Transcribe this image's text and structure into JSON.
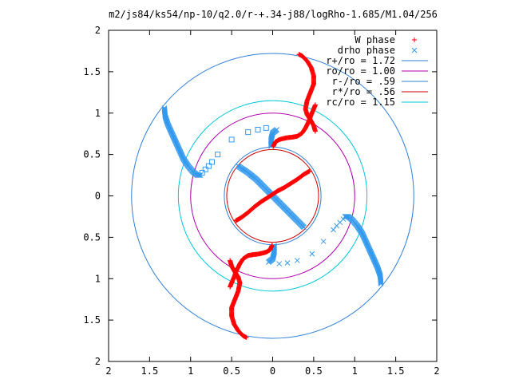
{
  "chart_data": {
    "type": "scatter",
    "title": "m2/js84/ks54/np-10/q2.0/r-+.34-j88/logRho-1.685/M1.04/256",
    "xlabel": "",
    "ylabel": "",
    "xlim": [
      -2,
      2
    ],
    "ylim": [
      -2,
      2
    ],
    "x_tick_labels": [
      "2",
      "1.5",
      "1",
      "0.5",
      "0",
      "0.5",
      "1",
      "1.5",
      "2"
    ],
    "y_tick_labels": [
      "2",
      "1.5",
      "1",
      "0.5",
      "0",
      "0.5",
      "1",
      "1.5",
      "2"
    ],
    "grid": false,
    "legend_position": "top-right",
    "colors": {
      "w_phase": "#ff0000",
      "drho_phase": "#3399ee",
      "r_plus": "#2f7fd8",
      "ro": "#b000b0",
      "r_minus": "#2f7fd8",
      "r_star": "#cc0000",
      "rc": "#00c8d8"
    },
    "series": [
      {
        "name": "W phase",
        "kind": "points",
        "marker": "plus",
        "arms": [
          {
            "x": [
              -0.52,
              -0.5,
              -0.46,
              -0.42,
              -0.4,
              -0.42,
              -0.46,
              -0.5,
              -0.5,
              -0.47,
              -0.42,
              -0.36,
              -0.32
            ],
            "y": [
              -0.78,
              -0.85,
              -0.92,
              -0.98,
              -1.05,
              -1.15,
              -1.25,
              -1.35,
              -1.45,
              -1.55,
              -1.63,
              -1.69,
              -1.71
            ]
          },
          {
            "x": [
              -0.01,
              -0.03,
              -0.08,
              -0.16,
              -0.24,
              -0.3,
              -0.36,
              -0.4,
              -0.44,
              -0.47,
              -0.5,
              -0.52
            ],
            "y": [
              -0.6,
              -0.65,
              -0.68,
              -0.7,
              -0.71,
              -0.72,
              -0.76,
              -0.82,
              -0.9,
              -0.98,
              -1.05,
              -1.1
            ]
          },
          {
            "x": [
              0.52,
              0.5,
              0.46,
              0.42,
              0.4,
              0.42,
              0.46,
              0.5,
              0.5,
              0.47,
              0.42,
              0.36,
              0.32
            ],
            "y": [
              0.78,
              0.85,
              0.92,
              0.98,
              1.05,
              1.15,
              1.25,
              1.35,
              1.45,
              1.55,
              1.63,
              1.69,
              1.71
            ]
          },
          {
            "x": [
              0.01,
              0.03,
              0.08,
              0.16,
              0.24,
              0.3,
              0.36,
              0.4,
              0.44,
              0.47,
              0.5,
              0.52
            ],
            "y": [
              0.6,
              0.65,
              0.68,
              0.7,
              0.71,
              0.72,
              0.76,
              0.82,
              0.9,
              0.98,
              1.05,
              1.1
            ]
          },
          {
            "x": [
              -0.45,
              -0.38,
              -0.3,
              -0.22,
              -0.14,
              -0.06,
              0.0,
              0.06,
              0.14,
              0.22,
              0.3,
              0.38,
              0.45
            ],
            "y": [
              -0.3,
              -0.26,
              -0.2,
              -0.13,
              -0.07,
              -0.02,
              0.02,
              0.06,
              0.1,
              0.15,
              0.2,
              0.26,
              0.3
            ]
          }
        ]
      },
      {
        "name": "drho phase",
        "kind": "points",
        "marker": "cross",
        "arms": [
          {
            "x": [
              -1.32,
              -1.31,
              -1.28,
              -1.24,
              -1.19,
              -1.14,
              -1.09,
              -1.03,
              -0.97,
              -0.92,
              -0.88
            ],
            "y": [
              1.06,
              0.96,
              0.87,
              0.78,
              0.67,
              0.56,
              0.45,
              0.36,
              0.29,
              0.25,
              0.25
            ]
          },
          {
            "x": [
              1.32,
              1.31,
              1.28,
              1.24,
              1.19,
              1.14,
              1.09,
              1.03,
              0.97,
              0.92,
              0.88
            ],
            "y": [
              -1.06,
              -0.96,
              -0.87,
              -0.78,
              -0.67,
              -0.56,
              -0.45,
              -0.36,
              -0.29,
              -0.25,
              -0.25
            ]
          },
          {
            "x": [
              -0.42,
              -0.3,
              -0.2,
              -0.1,
              0.0,
              0.1,
              0.2,
              0.3,
              0.38
            ],
            "y": [
              0.36,
              0.28,
              0.2,
              0.1,
              0.0,
              -0.1,
              -0.2,
              -0.3,
              -0.38
            ]
          },
          {
            "x": [
              -0.02,
              -0.02,
              0.0,
              0.05
            ],
            "y": [
              0.6,
              0.68,
              0.76,
              0.8
            ]
          },
          {
            "x": [
              0.02,
              0.02,
              0.0,
              -0.05
            ],
            "y": [
              -0.6,
              -0.68,
              -0.76,
              -0.8
            ]
          }
        ],
        "sparse": {
          "x": [
            -0.86,
            -0.82,
            -0.78,
            -0.74,
            -0.67,
            -0.5,
            -0.3,
            -0.18,
            -0.08,
            0.86,
            0.82,
            0.78,
            0.74,
            0.62,
            0.48,
            0.3,
            0.18,
            0.08
          ],
          "y": [
            0.28,
            0.32,
            0.36,
            0.41,
            0.5,
            0.68,
            0.77,
            0.8,
            0.82,
            -0.28,
            -0.32,
            -0.36,
            -0.41,
            -0.55,
            -0.7,
            -0.78,
            -0.81,
            -0.82
          ]
        }
      },
      {
        "name": "r+/ro = 1.72",
        "kind": "circle",
        "radius": 1.72
      },
      {
        "name": "ro/ro = 1.00",
        "kind": "circle",
        "radius": 1.0
      },
      {
        "name": "r-/ro = .59",
        "kind": "circle",
        "radius": 0.59
      },
      {
        "name": "r*/ro = .56",
        "kind": "circle",
        "radius": 0.56
      },
      {
        "name": "rc/ro = 1.15",
        "kind": "circle",
        "radius": 1.15
      }
    ]
  }
}
